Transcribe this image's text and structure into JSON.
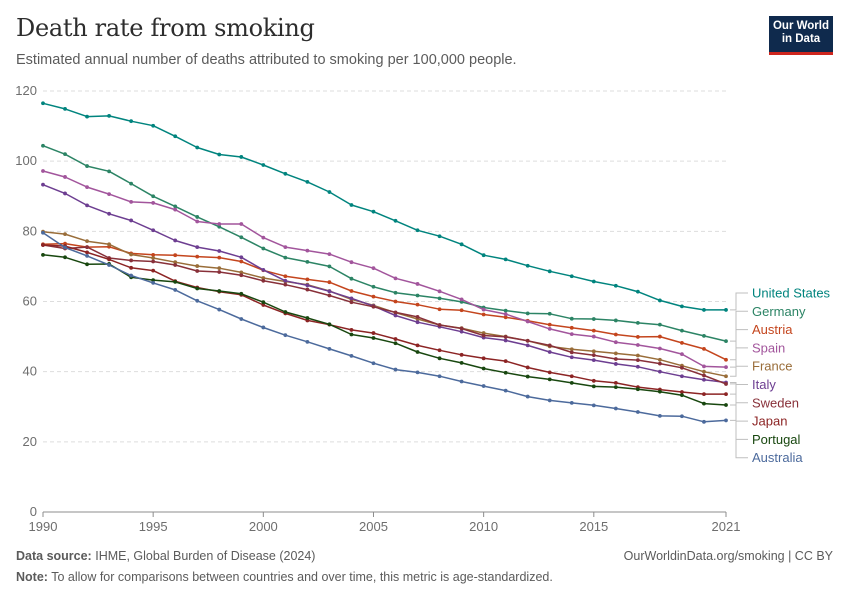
{
  "header": {
    "title": "Death rate from smoking",
    "subtitle": "Estimated annual number of deaths attributed to smoking per 100,000 people."
  },
  "logo": {
    "line1": "Our World",
    "line2": "in Data"
  },
  "footer": {
    "source_label": "Data source:",
    "source_text": "IHME, Global Burden of Disease (2024)",
    "url_text": "OurWorldinData.org/smoking | CC BY",
    "note_label": "Note:",
    "note_text": "To allow for comparisons between countries and over time, this metric is age-standardized."
  },
  "chart_data": {
    "type": "line",
    "title": "Death rate from smoking",
    "xlabel": "",
    "ylabel": "",
    "xlim": [
      1990,
      2021
    ],
    "ylim": [
      0,
      120
    ],
    "y_ticks": [
      0,
      20,
      40,
      60,
      80,
      100,
      120
    ],
    "x_ticks": [
      1990,
      1995,
      2000,
      2005,
      2010,
      2015,
      2021
    ],
    "grid": "horizontal dashed",
    "legend": "right, labels at line ends",
    "x": [
      1990,
      1991,
      1992,
      1993,
      1994,
      1995,
      1996,
      1997,
      1998,
      1999,
      2000,
      2001,
      2002,
      2003,
      2004,
      2005,
      2006,
      2007,
      2008,
      2009,
      2010,
      2011,
      2012,
      2013,
      2014,
      2015,
      2016,
      2017,
      2018,
      2019,
      2020,
      2021
    ],
    "series": [
      {
        "name": "United States",
        "color": "#00847e",
        "values": [
          116.5,
          114.9,
          112.7,
          112.9,
          111.4,
          110.1,
          107.1,
          103.9,
          101.9,
          101.2,
          98.9,
          96.4,
          94.1,
          91.2,
          87.5,
          85.6,
          83.0,
          80.3,
          78.6,
          76.3,
          73.2,
          72.0,
          70.2,
          68.6,
          67.2,
          65.7,
          64.5,
          62.8,
          60.3,
          58.6,
          57.6,
          57.6
        ]
      },
      {
        "name": "Germany",
        "color": "#2c8465",
        "values": [
          104.4,
          102.0,
          98.6,
          97.1,
          93.6,
          90.0,
          87.1,
          84.1,
          81.3,
          78.3,
          75.1,
          72.5,
          71.3,
          70.0,
          66.5,
          64.2,
          62.5,
          61.7,
          60.9,
          59.9,
          58.3,
          57.4,
          56.6,
          56.5,
          55.1,
          55.0,
          54.6,
          53.9,
          53.4,
          51.7,
          50.2,
          48.7
        ]
      },
      {
        "name": "Austria",
        "color": "#c4451d",
        "values": [
          76.3,
          76.5,
          75.5,
          75.6,
          73.7,
          73.3,
          73.2,
          72.8,
          72.5,
          71.4,
          68.9,
          67.2,
          66.3,
          65.5,
          63.0,
          61.4,
          60.0,
          59.1,
          57.8,
          57.5,
          56.3,
          55.5,
          54.5,
          53.4,
          52.5,
          51.7,
          50.6,
          49.9,
          50.0,
          48.2,
          46.5,
          43.4
        ]
      },
      {
        "name": "Spain",
        "color": "#a2559c",
        "values": [
          97.2,
          95.5,
          92.6,
          90.6,
          88.4,
          88.1,
          86.2,
          82.8,
          82.1,
          82.1,
          78.2,
          75.5,
          74.5,
          73.5,
          71.2,
          69.5,
          66.6,
          65.0,
          62.9,
          60.6,
          57.7,
          56.4,
          54.3,
          52.2,
          50.7,
          50.0,
          48.4,
          47.6,
          46.6,
          45.0,
          41.5,
          41.3
        ]
      },
      {
        "name": "France",
        "color": "#996d39",
        "values": [
          79.9,
          79.2,
          77.2,
          76.3,
          73.4,
          72.4,
          71.2,
          70.1,
          69.5,
          68.3,
          66.7,
          65.7,
          64.8,
          63.0,
          60.6,
          58.9,
          56.8,
          55.0,
          53.3,
          52.4,
          51.0,
          50.0,
          48.8,
          47.2,
          46.4,
          45.8,
          45.2,
          44.6,
          43.4,
          41.7,
          40.0,
          38.7
        ]
      },
      {
        "name": "Italy",
        "color": "#6d3e91",
        "values": [
          93.3,
          90.8,
          87.4,
          85.0,
          83.1,
          80.3,
          77.4,
          75.5,
          74.4,
          72.6,
          69.0,
          65.9,
          64.6,
          62.9,
          60.9,
          58.7,
          56.0,
          54.1,
          52.8,
          51.4,
          49.7,
          48.9,
          47.5,
          45.6,
          44.1,
          43.3,
          42.2,
          41.4,
          40.0,
          38.7,
          37.7,
          36.9
        ]
      },
      {
        "name": "Sweden",
        "color": "#883039",
        "values": [
          76.1,
          75.1,
          75.5,
          72.4,
          71.7,
          71.4,
          70.4,
          68.7,
          68.4,
          67.5,
          65.9,
          64.8,
          63.4,
          61.7,
          59.8,
          58.5,
          56.9,
          55.6,
          53.3,
          52.3,
          50.3,
          49.9,
          48.8,
          47.5,
          45.5,
          44.7,
          43.6,
          43.3,
          42.3,
          41.1,
          38.9,
          36.5
        ]
      },
      {
        "name": "Japan",
        "color": "#8c2424",
        "values": [
          76.1,
          75.8,
          74.0,
          72.0,
          69.6,
          68.8,
          65.8,
          64.0,
          62.8,
          61.9,
          59.0,
          56.6,
          54.6,
          53.4,
          51.9,
          51.0,
          49.3,
          47.5,
          46.1,
          44.8,
          43.8,
          43.0,
          41.2,
          39.8,
          38.7,
          37.4,
          36.8,
          35.6,
          34.9,
          34.2,
          33.6,
          33.6
        ]
      },
      {
        "name": "Portugal",
        "color": "#18470f",
        "values": [
          73.3,
          72.6,
          70.6,
          70.7,
          66.9,
          66.1,
          65.6,
          63.7,
          63.0,
          62.2,
          59.8,
          57.0,
          55.3,
          53.5,
          50.6,
          49.6,
          48.1,
          45.6,
          43.8,
          42.5,
          40.9,
          39.7,
          38.6,
          37.8,
          36.8,
          35.8,
          35.6,
          35.0,
          34.3,
          33.3,
          30.9,
          30.5
        ]
      },
      {
        "name": "Australia",
        "color": "#4c6a9c",
        "values": [
          79.6,
          75.4,
          73.0,
          70.4,
          67.4,
          65.3,
          63.3,
          60.2,
          57.7,
          55.0,
          52.6,
          50.4,
          48.5,
          46.5,
          44.5,
          42.4,
          40.6,
          39.8,
          38.7,
          37.2,
          35.9,
          34.6,
          32.9,
          31.8,
          31.1,
          30.4,
          29.5,
          28.5,
          27.4,
          27.3,
          25.7,
          26.1
        ]
      }
    ]
  }
}
